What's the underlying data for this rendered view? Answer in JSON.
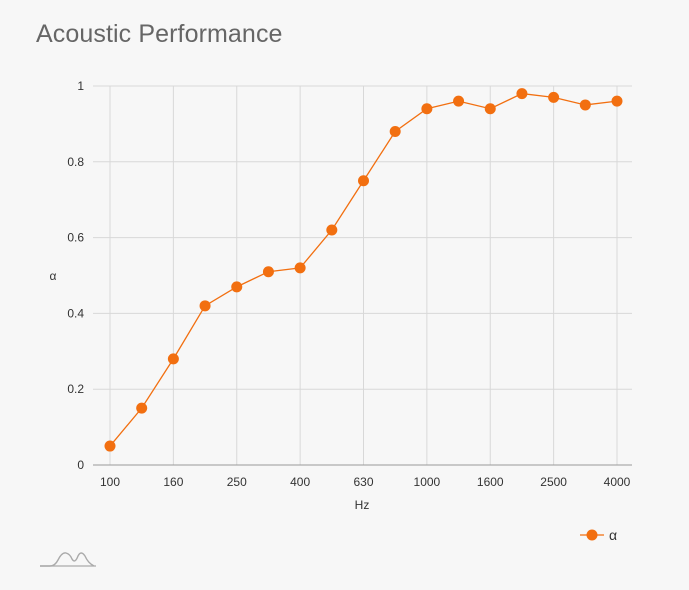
{
  "page": {
    "title": "Acoustic Performance",
    "logo_icon": "mountain-wave-logo-icon"
  },
  "colors": {
    "series": "#f26f10",
    "grid": "#d8d8d8",
    "axis": "#9a9a9a",
    "background": "#f7f7f7",
    "title": "#666666"
  },
  "chart_data": {
    "type": "line",
    "title": "Acoustic Performance",
    "xlabel": "Hz",
    "ylabel": "α",
    "x": [
      "100",
      "125",
      "160",
      "200",
      "250",
      "315",
      "400",
      "500",
      "630",
      "800",
      "1000",
      "1250",
      "1600",
      "2000",
      "2500",
      "3150",
      "4000"
    ],
    "x_tick_labels": [
      "100",
      "160",
      "250",
      "400",
      "630",
      "1000",
      "1600",
      "2500",
      "4000"
    ],
    "y_ticks": [
      0,
      0.2,
      0.4,
      0.6,
      0.8,
      1
    ],
    "ylim": [
      0,
      1
    ],
    "grid": true,
    "legend_position": "bottom-right",
    "series": [
      {
        "name": "α",
        "color": "#f26f10",
        "values": [
          0.05,
          0.15,
          0.28,
          0.42,
          0.47,
          0.51,
          0.52,
          0.62,
          0.75,
          0.88,
          0.94,
          0.96,
          0.94,
          0.98,
          0.97,
          0.95,
          0.96
        ]
      }
    ]
  }
}
